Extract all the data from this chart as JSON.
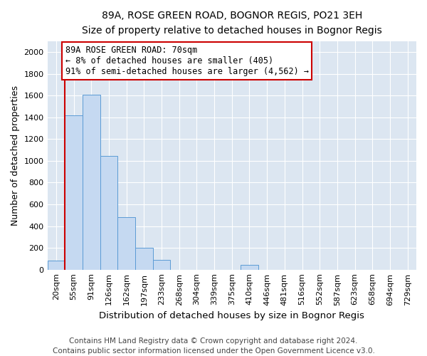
{
  "title": "89A, ROSE GREEN ROAD, BOGNOR REGIS, PO21 3EH",
  "subtitle": "Size of property relative to detached houses in Bognor Regis",
  "xlabel": "Distribution of detached houses by size in Bognor Regis",
  "ylabel": "Number of detached properties",
  "categories": [
    "20sqm",
    "55sqm",
    "91sqm",
    "126sqm",
    "162sqm",
    "197sqm",
    "233sqm",
    "268sqm",
    "304sqm",
    "339sqm",
    "375sqm",
    "410sqm",
    "446sqm",
    "481sqm",
    "516sqm",
    "552sqm",
    "587sqm",
    "623sqm",
    "658sqm",
    "694sqm",
    "729sqm"
  ],
  "values": [
    80,
    1420,
    1610,
    1045,
    480,
    200,
    90,
    0,
    0,
    0,
    0,
    45,
    0,
    0,
    0,
    0,
    0,
    0,
    0,
    0,
    0
  ],
  "bar_color": "#c5d9f1",
  "bar_edge_color": "#5b9bd5",
  "annotation_text": "89A ROSE GREEN ROAD: 70sqm\n← 8% of detached houses are smaller (405)\n91% of semi-detached houses are larger (4,562) →",
  "annotation_box_color": "#ffffff",
  "annotation_box_edge": "#cc0000",
  "vline_color": "#cc0000",
  "ylim": [
    0,
    2100
  ],
  "yticks": [
    0,
    200,
    400,
    600,
    800,
    1000,
    1200,
    1400,
    1600,
    1800,
    2000
  ],
  "footnote_line1": "Contains HM Land Registry data © Crown copyright and database right 2024.",
  "footnote_line2": "Contains public sector information licensed under the Open Government Licence v3.0.",
  "bg_color": "#dce6f1",
  "title_fontsize": 10,
  "subtitle_fontsize": 9.5,
  "xlabel_fontsize": 9.5,
  "ylabel_fontsize": 9,
  "tick_fontsize": 8,
  "annot_fontsize": 8.5,
  "footnote_fontsize": 7.5
}
